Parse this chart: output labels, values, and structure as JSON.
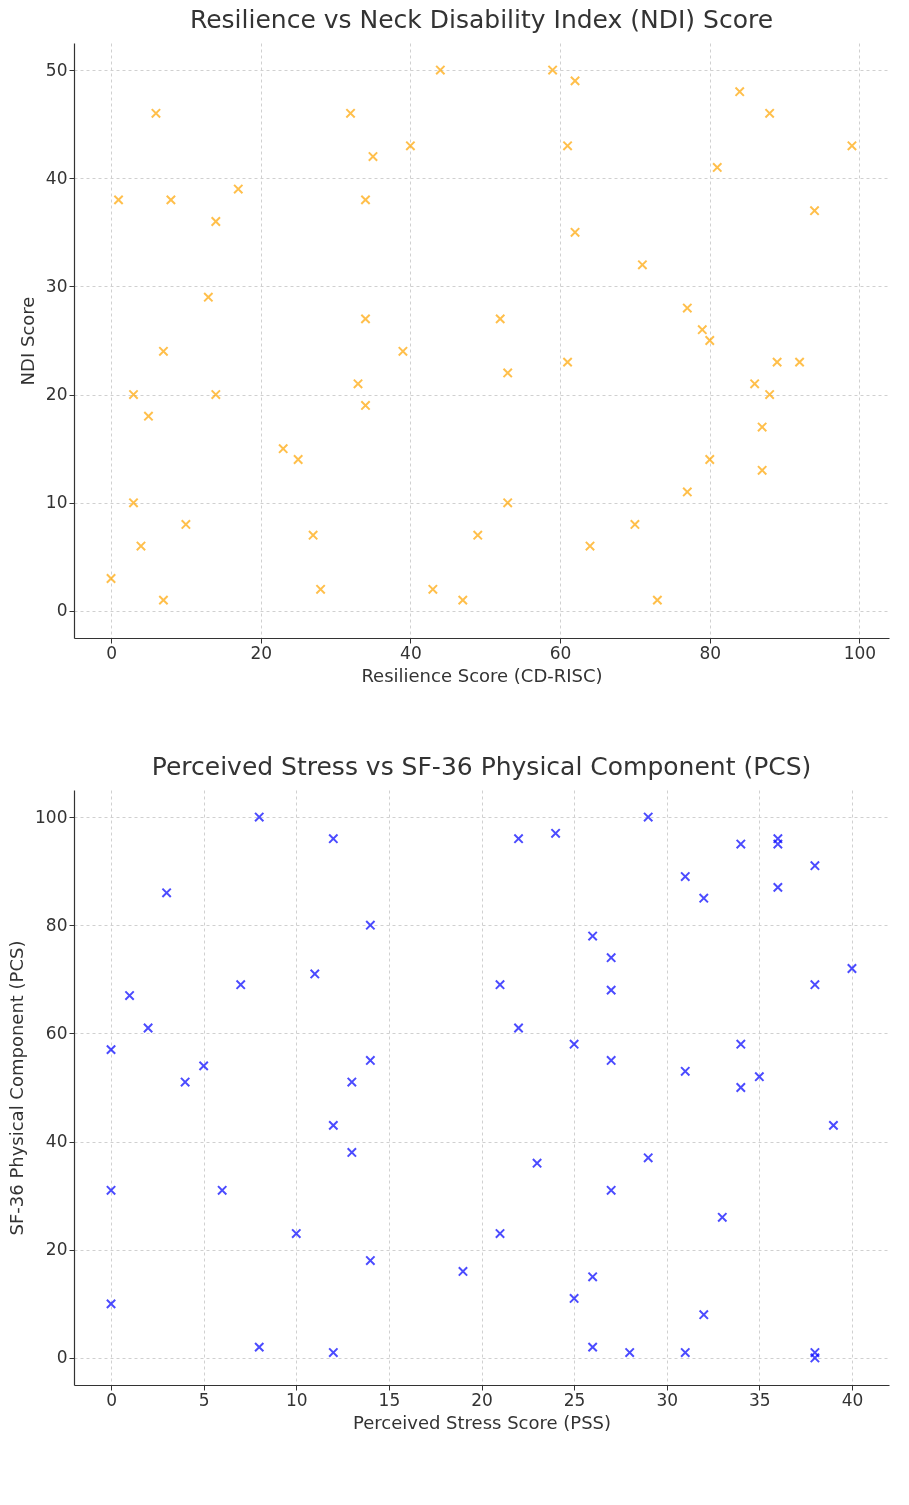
{
  "chart_data": [
    {
      "type": "scatter",
      "title": "Resilience vs Neck Disability Index (NDI) Score",
      "xlabel": "Resilience Score (CD-RISC)",
      "ylabel": "NDI Score",
      "xlim": [
        -4.95,
        103.95
      ],
      "ylim": [
        -2.5,
        52.5
      ],
      "xticks": [
        0,
        20,
        40,
        60,
        80,
        100
      ],
      "yticks": [
        0,
        10,
        20,
        30,
        40,
        50
      ],
      "grid": true,
      "marker": "cross",
      "series": [
        {
          "color": "#ffa500",
          "x": [
            0,
            1,
            3,
            3,
            4,
            5,
            6,
            7,
            7,
            8,
            10,
            13,
            14,
            14,
            17,
            23,
            25,
            27,
            28,
            32,
            33,
            34,
            34,
            34,
            35,
            39,
            40,
            43,
            44,
            47,
            49,
            52,
            53,
            53,
            59,
            61,
            61,
            62,
            62,
            64,
            70,
            71,
            73,
            77,
            77,
            79,
            80,
            80,
            81,
            84,
            86,
            87,
            87,
            88,
            88,
            89,
            92,
            94,
            99
          ],
          "values": [
            3,
            38,
            20,
            10,
            6,
            18,
            46,
            24,
            1,
            38,
            8,
            29,
            36,
            20,
            39,
            15,
            14,
            7,
            2,
            46,
            21,
            38,
            27,
            19,
            42,
            24,
            43,
            2,
            50,
            1,
            7,
            27,
            22,
            10,
            50,
            43,
            23,
            49,
            35,
            6,
            8,
            32,
            1,
            28,
            11,
            26,
            25,
            14,
            41,
            48,
            21,
            17,
            13,
            46,
            20,
            23,
            23,
            37,
            43
          ]
        }
      ]
    },
    {
      "type": "scatter",
      "title": "Perceived Stress vs SF-36 Physical Component (PCS)",
      "xlabel": "Perceived Stress Score (PSS)",
      "ylabel": "SF-36 Physical Component (PCS)",
      "xlim": [
        -2,
        42
      ],
      "ylim": [
        -5,
        105
      ],
      "xticks": [
        0,
        5,
        10,
        15,
        20,
        25,
        30,
        35,
        40
      ],
      "yticks": [
        0,
        20,
        40,
        60,
        80,
        100
      ],
      "grid": true,
      "marker": "cross",
      "series": [
        {
          "color": "#0000ff",
          "x": [
            0,
            0,
            0,
            1,
            2,
            3,
            4,
            5,
            6,
            7,
            8,
            8,
            10,
            11,
            12,
            12,
            12,
            13,
            13,
            14,
            14,
            14,
            19,
            21,
            21,
            22,
            22,
            23,
            24,
            25,
            25,
            26,
            26,
            26,
            27,
            27,
            27,
            27,
            28,
            29,
            29,
            31,
            31,
            31,
            32,
            32,
            33,
            34,
            34,
            34,
            35,
            36,
            36,
            36,
            38,
            38,
            38,
            38,
            39,
            40
          ],
          "values": [
            57,
            31,
            10,
            67,
            61,
            86,
            51,
            54,
            31,
            69,
            100,
            2,
            23,
            71,
            96,
            43,
            1,
            51,
            38,
            80,
            55,
            18,
            16,
            69,
            23,
            96,
            61,
            36,
            97,
            58,
            11,
            78,
            15,
            2,
            74,
            68,
            55,
            31,
            1,
            100,
            37,
            89,
            53,
            1,
            85,
            8,
            26,
            95,
            58,
            50,
            52,
            96,
            95,
            87,
            91,
            69,
            1,
            0,
            43,
            72
          ]
        }
      ]
    }
  ]
}
